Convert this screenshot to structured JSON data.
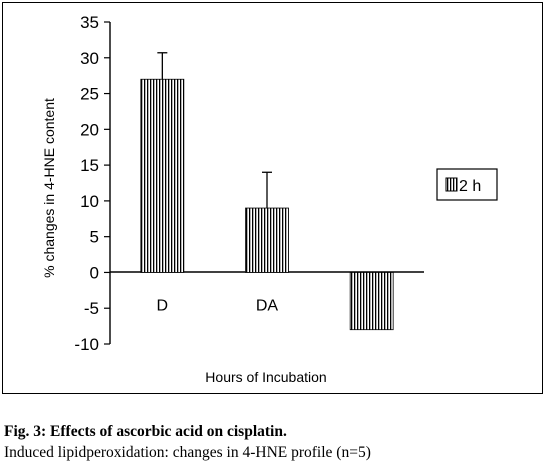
{
  "chart_data": {
    "type": "bar",
    "categories": [
      "D",
      "DA",
      ""
    ],
    "series": [
      {
        "name": "2 h",
        "values": [
          27,
          9,
          -8
        ],
        "errors": [
          3.7,
          5,
          0
        ]
      }
    ],
    "xlabel": "Hours of Incubation",
    "ylabel": "% changes in 4-HNE content",
    "ylim": [
      -10,
      35
    ],
    "yticks": [
      -10,
      -5,
      0,
      5,
      10,
      15,
      20,
      25,
      30,
      35
    ],
    "grid": false,
    "legend_position": "right"
  },
  "caption": {
    "line1": "Fig. 3: Effects of ascorbic acid on cisplatin.",
    "line2": "Induced lipidperoxidation: changes in 4-HNE profile (n=5)"
  }
}
